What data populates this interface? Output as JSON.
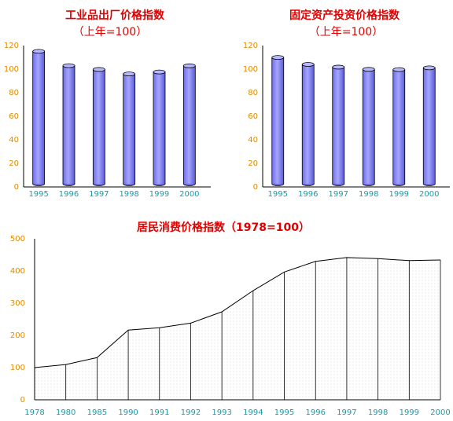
{
  "chart_data": [
    {
      "type": "bar",
      "title": "工业品出厂价格指数",
      "subtitle": "（上年=100）",
      "categories": [
        "1995",
        "1996",
        "1997",
        "1998",
        "1999",
        "2000"
      ],
      "values": [
        115.1,
        102.9,
        99.7,
        95.9,
        97.6,
        102.8
      ],
      "yticks": [
        "0",
        "20",
        "40",
        "60",
        "80",
        "100",
        "120"
      ],
      "ylim": [
        0,
        120
      ],
      "color": "#9999ff"
    },
    {
      "type": "bar",
      "title": "固定资产投资价格指数",
      "subtitle": "（上年=100）",
      "categories": [
        "1995",
        "1996",
        "1997",
        "1998",
        "1999",
        "2000"
      ],
      "values": [
        109.9,
        104.0,
        101.7,
        99.8,
        99.6,
        101.1
      ],
      "yticks": [
        "0",
        "20",
        "40",
        "60",
        "80",
        "100",
        "120"
      ],
      "ylim": [
        0,
        120
      ],
      "color": "#9999ff"
    },
    {
      "type": "area",
      "title": "居民消费价格指数（1978=100）",
      "categories": [
        "1978",
        "1980",
        "1985",
        "1990",
        "1991",
        "1992",
        "1993",
        "1994",
        "1995",
        "1996",
        "1997",
        "1998",
        "1999",
        "2000"
      ],
      "values": [
        100.0,
        109.5,
        131.1,
        216.4,
        223.8,
        238.1,
        273.1,
        339.0,
        396.9,
        429.9,
        441.9,
        438.4,
        432.2,
        434.0
      ],
      "yticks": [
        "0",
        "100",
        "200",
        "300",
        "400",
        "500"
      ],
      "ylim": [
        0,
        500
      ]
    }
  ]
}
